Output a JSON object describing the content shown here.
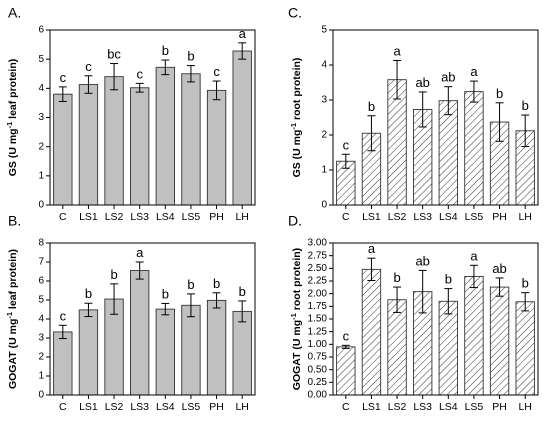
{
  "chart_data": [
    {
      "panel": "A.",
      "type": "bar",
      "ylabel_main": "GS (U mg",
      "ylabel_sup": "-1",
      "ylabel_rest": " leaf protein)",
      "ylim": [
        0,
        6
      ],
      "yticks": [
        "0",
        "1",
        "2",
        "3",
        "4",
        "5",
        "6"
      ],
      "categories": [
        "C",
        "LS1",
        "LS2",
        "LS3",
        "LS4",
        "LS5",
        "PH",
        "LH"
      ],
      "values": [
        3.8,
        4.13,
        4.4,
        4.02,
        4.72,
        4.5,
        3.93,
        5.28
      ],
      "errors": [
        0.25,
        0.3,
        0.45,
        0.15,
        0.25,
        0.28,
        0.32,
        0.28
      ],
      "letters": [
        "c",
        "c",
        "bc",
        "c",
        "b",
        "b",
        "c",
        "a"
      ],
      "fill": "solid",
      "bar_color": "#c0c0c0"
    },
    {
      "panel": "C.",
      "type": "bar",
      "ylabel_main": "GS (U mg",
      "ylabel_sup": "-1",
      "ylabel_rest": " root protein)",
      "ylim": [
        0,
        5
      ],
      "yticks": [
        "0",
        "1",
        "2",
        "3",
        "4",
        "5"
      ],
      "categories": [
        "C",
        "LS1",
        "LS2",
        "LS3",
        "LS4",
        "LS5",
        "PH",
        "LH"
      ],
      "values": [
        1.25,
        2.05,
        3.58,
        2.73,
        2.98,
        3.24,
        2.37,
        2.12
      ],
      "errors": [
        0.2,
        0.5,
        0.55,
        0.5,
        0.4,
        0.3,
        0.55,
        0.45
      ],
      "letters": [
        "c",
        "b",
        "a",
        "ab",
        "ab",
        "a",
        "b",
        "b"
      ],
      "fill": "hatched",
      "bar_color": "#ffffff"
    },
    {
      "panel": "B.",
      "type": "bar",
      "ylabel_main": "GOGAT (U mg",
      "ylabel_sup": "-1",
      "ylabel_rest": " leaf protein)",
      "ylim": [
        0,
        8
      ],
      "yticks": [
        "0",
        "1",
        "2",
        "3",
        "4",
        "5",
        "6",
        "7",
        "8"
      ],
      "categories": [
        "C",
        "LS1",
        "LS2",
        "LS3",
        "LS4",
        "LS5",
        "PH",
        "LH"
      ],
      "values": [
        3.32,
        4.48,
        5.05,
        6.55,
        4.52,
        4.72,
        4.98,
        4.4
      ],
      "errors": [
        0.35,
        0.35,
        0.8,
        0.45,
        0.3,
        0.6,
        0.4,
        0.55
      ],
      "letters": [
        "c",
        "b",
        "b",
        "a",
        "b",
        "b",
        "b",
        "b"
      ],
      "fill": "solid",
      "bar_color": "#c0c0c0"
    },
    {
      "panel": "D.",
      "type": "bar",
      "ylabel_main": "GOGAT (U mg",
      "ylabel_sup": "-1",
      "ylabel_rest": " root protein)",
      "ylim": [
        0,
        3
      ],
      "yticks": [
        "0.00",
        "0.25",
        "0.50",
        "0.75",
        "1.00",
        "1.25",
        "1.50",
        "1.75",
        "2.00",
        "2.25",
        "2.50",
        "2.75",
        "3.00"
      ],
      "categories": [
        "C",
        "LS1",
        "LS2",
        "LS3",
        "LS4",
        "LS5",
        "PH",
        "LH"
      ],
      "values": [
        0.95,
        2.48,
        1.88,
        2.04,
        1.85,
        2.34,
        2.13,
        1.84
      ],
      "errors": [
        0.03,
        0.22,
        0.25,
        0.42,
        0.25,
        0.22,
        0.18,
        0.18
      ],
      "letters": [
        "c",
        "a",
        "b",
        "ab",
        "b",
        "a",
        "ab",
        "b"
      ],
      "fill": "hatched",
      "bar_color": "#ffffff"
    }
  ]
}
